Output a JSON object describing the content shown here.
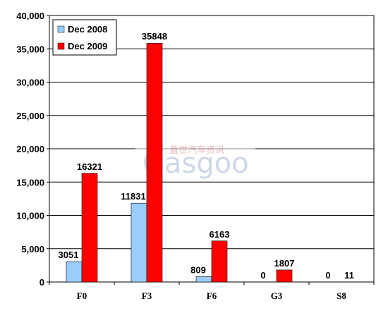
{
  "chart_data": {
    "type": "bar",
    "categories": [
      "F0",
      "F3",
      "F6",
      "G3",
      "S8"
    ],
    "series": [
      {
        "name": "Dec 2008",
        "values": [
          3051,
          11831,
          809,
          0,
          0
        ],
        "labels": [
          "3051",
          "11831",
          "809",
          "0",
          "0"
        ],
        "color": "#99ccff"
      },
      {
        "name": "Dec 2009",
        "values": [
          16321,
          35848,
          6163,
          1807,
          11
        ],
        "labels": [
          "16321",
          "35848",
          "6163",
          "1807",
          "11"
        ],
        "color": "#ff0000"
      }
    ],
    "ylim": [
      0,
      40000
    ],
    "yticks": [
      0,
      5000,
      10000,
      15000,
      20000,
      25000,
      30000,
      35000,
      40000
    ],
    "ytick_labels": [
      "0",
      "5,000",
      "10,000",
      "15,000",
      "20,000",
      "25,000",
      "30,000",
      "35,000",
      "40,000"
    ],
    "grid": true,
    "legend_position": "top-left",
    "xlabel": "",
    "ylabel": "",
    "title": ""
  },
  "watermark": {
    "logo_text": "Gasgoo",
    "tagline": "盖世汽车资讯"
  }
}
